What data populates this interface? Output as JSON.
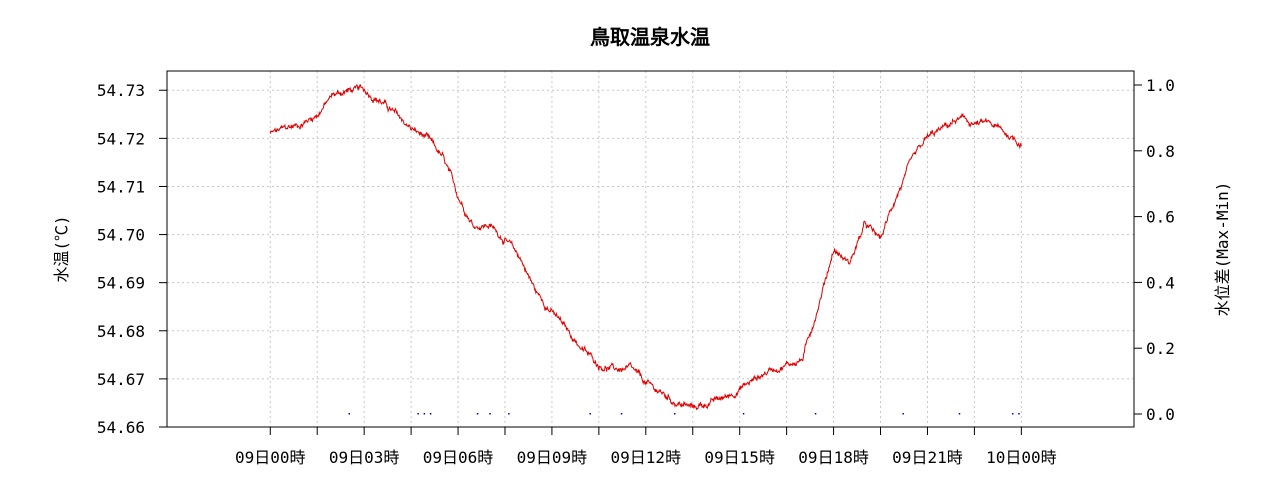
{
  "chart_data": {
    "type": "line",
    "title": "鳥取温泉水温",
    "ylabel": "水温(℃)",
    "y2label": "水位差(Max-Min)",
    "ylim": [
      54.66,
      54.734
    ],
    "y2lim": [
      0.0,
      1.0
    ],
    "yticks": [
      "54.66",
      "54.67",
      "54.68",
      "54.69",
      "54.70",
      "54.71",
      "54.72",
      "54.73"
    ],
    "y2ticks": [
      "0.0",
      "0.2",
      "0.4",
      "0.6",
      "0.8",
      "1.0"
    ],
    "xlim_hours": [
      -3.3,
      27.6
    ],
    "xticks_hours": [
      0,
      3,
      6,
      9,
      12,
      15,
      18,
      21,
      24
    ],
    "xtick_labels": [
      "09日00時",
      "09日03時",
      "09日06時",
      "09日09時",
      "09日12時",
      "09日15時",
      "09日18時",
      "09日21時",
      "10日00時"
    ],
    "grid": true,
    "series": [
      {
        "name": "水温",
        "axis": "left",
        "color": "#e00000",
        "x_hours": [
          0,
          0.5,
          1,
          1.5,
          2,
          2.5,
          3,
          3.5,
          4,
          4.5,
          5,
          5.5,
          6,
          6.5,
          7,
          7.5,
          8,
          8.5,
          9,
          9.5,
          10,
          10.5,
          11,
          11.5,
          12,
          12.5,
          13,
          13.5,
          14,
          14.5,
          15,
          15.5,
          16,
          16.5,
          17,
          17.5,
          18,
          18.5,
          19,
          19.5,
          20,
          20.5,
          21,
          21.5,
          22,
          22.5,
          23,
          23.5,
          24
        ],
        "values": [
          54.721,
          54.722,
          54.723,
          54.725,
          54.729,
          54.73,
          54.73,
          54.728,
          54.725,
          54.722,
          54.72,
          54.716,
          54.708,
          54.702,
          54.702,
          54.699,
          54.695,
          54.688,
          54.684,
          54.68,
          54.676,
          54.673,
          54.672,
          54.672,
          54.669,
          54.667,
          54.665,
          54.664,
          54.665,
          54.666,
          54.668,
          54.67,
          54.672,
          54.673,
          54.674,
          54.685,
          54.697,
          54.694,
          54.702,
          54.699,
          54.708,
          54.715,
          54.72,
          54.722,
          54.724,
          54.723,
          54.723,
          54.721,
          54.719
        ],
        "noise": 0.0012
      },
      {
        "name": "水位差",
        "axis": "right",
        "color": "#0000cc",
        "x_hours": [
          2.5,
          4.7,
          4.9,
          5.1,
          6.6,
          7.0,
          7.6,
          10.2,
          11.2,
          12.9,
          15.1,
          17.4,
          20.2,
          22.0,
          23.7,
          23.9
        ],
        "values": [
          0.0,
          0.0,
          0.0,
          0.0,
          0.0,
          0.0,
          0.0,
          0.0,
          0.0,
          0.0,
          0.0,
          0.0,
          0.0,
          0.0,
          0.0,
          0.0
        ]
      }
    ]
  }
}
